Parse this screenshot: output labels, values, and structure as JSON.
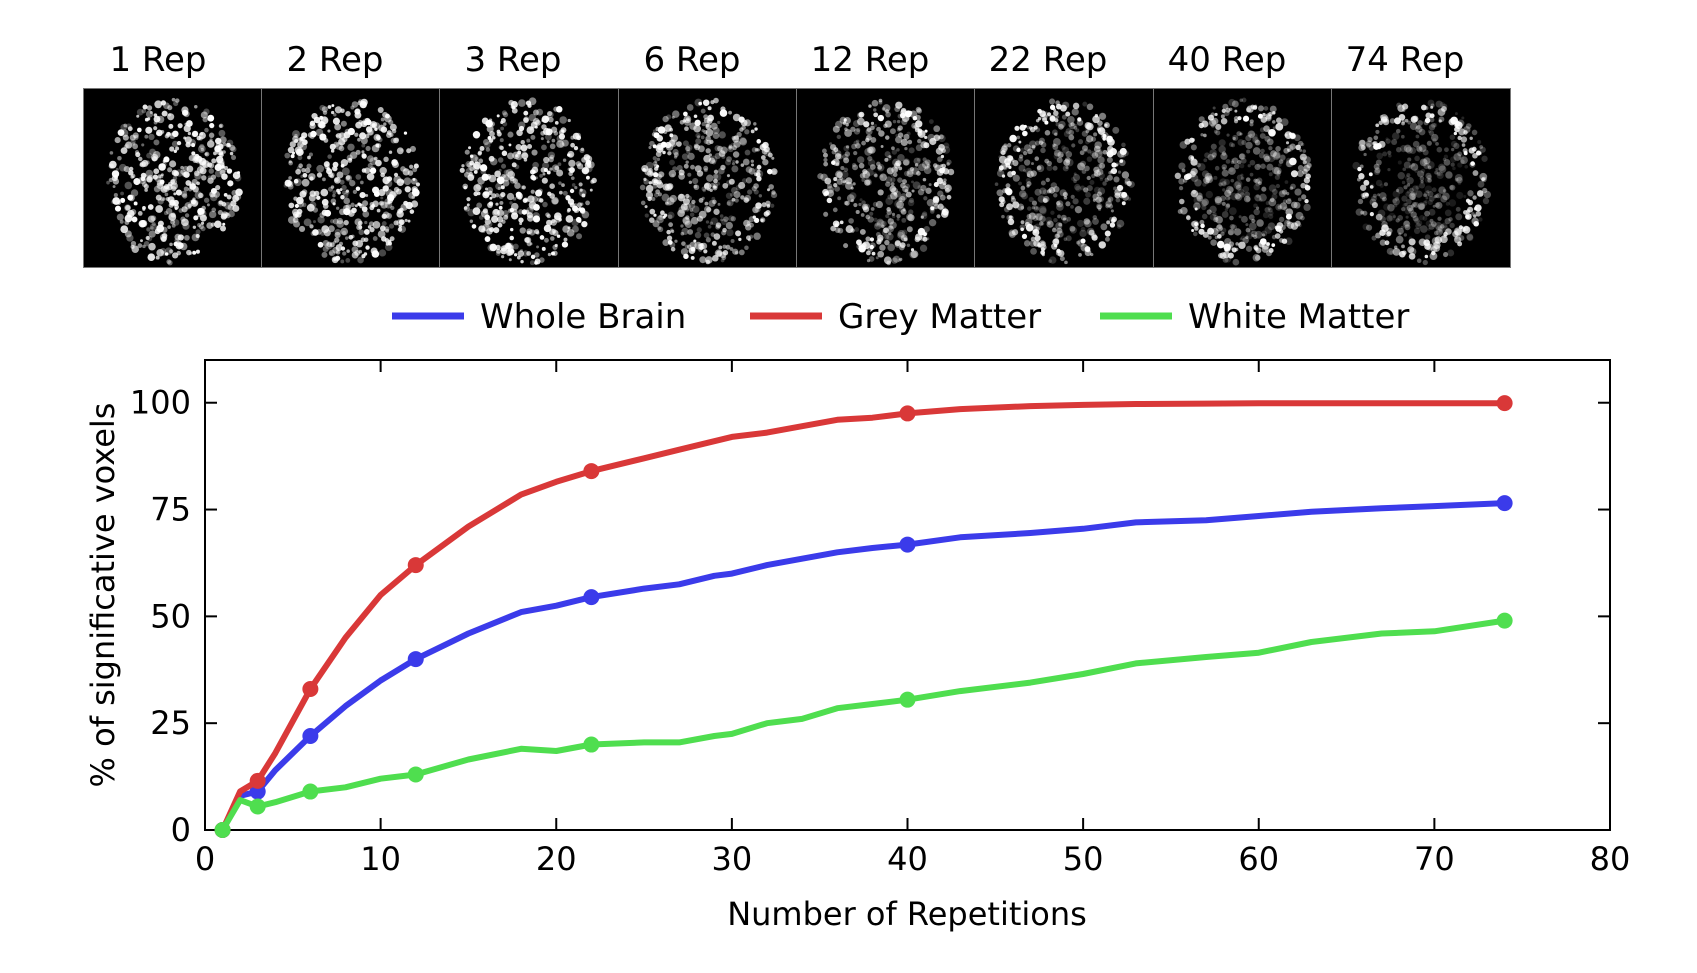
{
  "panels": [
    {
      "label": "1 Rep"
    },
    {
      "label": "2 Rep"
    },
    {
      "label": "3 Rep"
    },
    {
      "label": "6 Rep"
    },
    {
      "label": "12 Rep"
    },
    {
      "label": "22 Rep"
    },
    {
      "label": "40 Rep"
    },
    {
      "label": "74 Rep"
    }
  ],
  "chart_data": {
    "type": "line",
    "title": "",
    "xlabel": "Number of Repetitions",
    "ylabel": "% of significative voxels",
    "xlim": [
      0,
      80
    ],
    "ylim": [
      0,
      110
    ],
    "xticks": [
      0,
      10,
      20,
      30,
      40,
      50,
      60,
      70,
      80
    ],
    "yticks": [
      0,
      25,
      50,
      75,
      100
    ],
    "grid": false,
    "legend_position": "top",
    "series": [
      {
        "name": "Whole Brain",
        "color": "#3b3bea",
        "x": [
          1,
          2,
          3,
          4,
          6,
          8,
          10,
          12,
          15,
          18,
          20,
          22,
          25,
          27,
          29,
          30,
          32,
          34,
          36,
          38,
          40,
          43,
          47,
          50,
          53,
          57,
          60,
          63,
          67,
          70,
          74
        ],
        "y": [
          0,
          8,
          9,
          14,
          22,
          29,
          35,
          40,
          46,
          51,
          52.5,
          54.5,
          56.5,
          57.5,
          59.5,
          60,
          62,
          63.5,
          65,
          66,
          66.8,
          68.5,
          69.5,
          70.5,
          72,
          72.5,
          73.5,
          74.5,
          75.3,
          75.8,
          76.5
        ],
        "markers_at": [
          3,
          6,
          12,
          22,
          40,
          74
        ]
      },
      {
        "name": "Grey Matter",
        "color": "#d93838",
        "x": [
          1,
          2,
          3,
          4,
          6,
          8,
          10,
          12,
          15,
          18,
          20,
          22,
          25,
          27,
          29,
          30,
          32,
          34,
          36,
          38,
          40,
          43,
          47,
          50,
          53,
          57,
          60,
          63,
          67,
          70,
          74
        ],
        "y": [
          0,
          9,
          11.5,
          18,
          33,
          45,
          55,
          62,
          71,
          78.5,
          81.5,
          84,
          87,
          89,
          91,
          92,
          93,
          94.5,
          96,
          96.5,
          97.5,
          98.5,
          99.2,
          99.5,
          99.7,
          99.8,
          99.9,
          99.9,
          99.9,
          99.9,
          99.9
        ],
        "markers_at": [
          3,
          6,
          12,
          22,
          40,
          74
        ]
      },
      {
        "name": "White Matter",
        "color": "#4fde4f",
        "x": [
          1,
          2,
          3,
          4,
          6,
          8,
          10,
          12,
          15,
          18,
          20,
          22,
          25,
          27,
          29,
          30,
          32,
          34,
          36,
          38,
          40,
          43,
          47,
          50,
          53,
          57,
          60,
          63,
          67,
          70,
          74
        ],
        "y": [
          0,
          7,
          5.5,
          6.5,
          9,
          10,
          12,
          13,
          16.5,
          19,
          18.5,
          20,
          20.5,
          20.5,
          22,
          22.5,
          25,
          26,
          28.5,
          29.5,
          30.5,
          32.5,
          34.5,
          36.5,
          39,
          40.5,
          41.5,
          44,
          46,
          46.5,
          49
        ],
        "markers_at": [
          3,
          6,
          12,
          22,
          40,
          74
        ]
      }
    ]
  }
}
